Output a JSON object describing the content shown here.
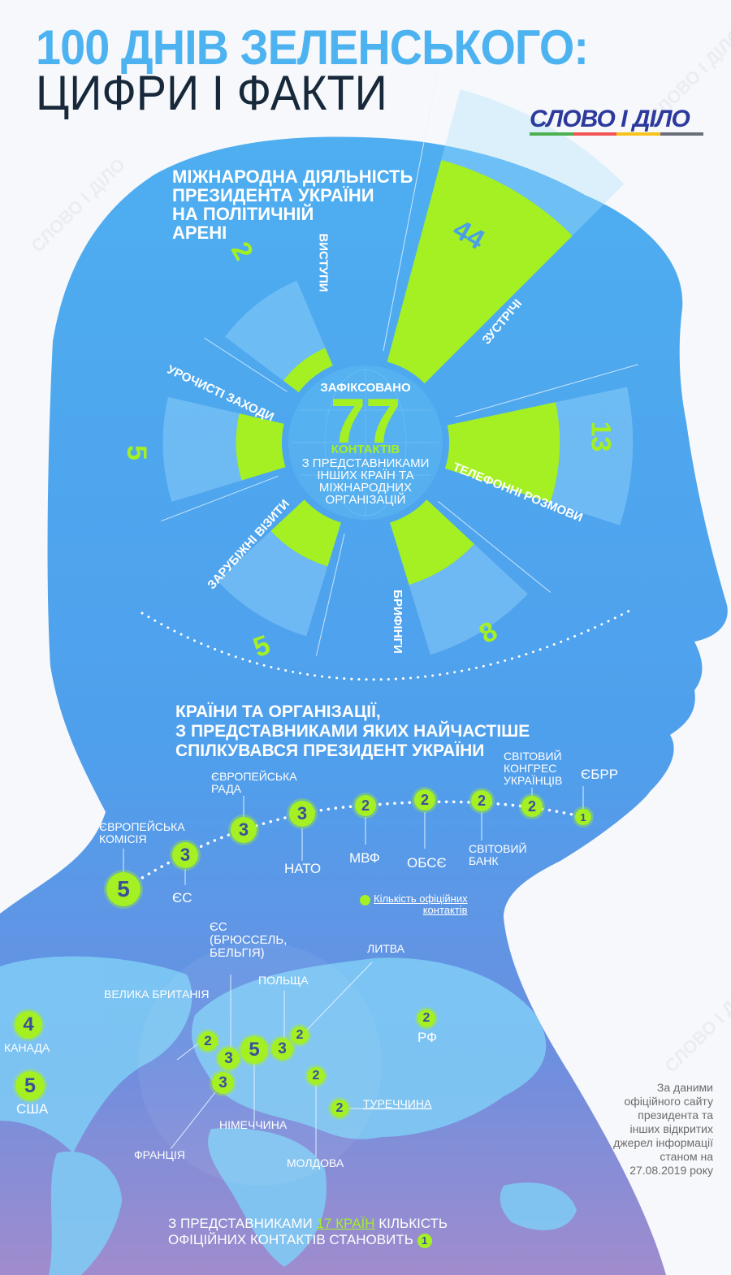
{
  "header": {
    "title_line1": "100 ДНІВ ЗЕЛЕНСЬКОГО:",
    "title_line2": "ЦИФРИ І ФАКТИ",
    "logo": "СЛОВО І ДІЛО",
    "watermark": "СЛОВО І ДІЛО"
  },
  "colors": {
    "accent_green": "#a4f023",
    "head_blue": "#4ea8ee",
    "head_purple": "#9d8fd0",
    "title_blue": "#4db3f0",
    "logo_blue": "#2b3a9c",
    "logo_stripes": [
      "#4caf50",
      "#f05454",
      "#f6c21b",
      "#6b6f7a"
    ]
  },
  "section1": {
    "title": [
      "МІЖНАРОДНА ДІЯЛЬНІСТЬ",
      "ПРЕЗИДЕНТА УКРАЇНИ",
      "НА ПОЛІТИЧНІЙ",
      "АРЕНІ"
    ],
    "center": {
      "line1": "ЗАФІКСОВАНО",
      "total": "77",
      "line2": "КОНТАКТІВ",
      "line3": [
        "З ПРЕДСТАВНИКАМИ",
        "ІНШИХ КРАЇН ТА",
        "МІЖНАРОДНИХ",
        "ОРГАНІЗАЦІЙ"
      ]
    }
  },
  "chart_data": {
    "type": "radial-bar",
    "total": 77,
    "categories": [
      "ВИСТУПИ",
      "ЗУСТРІЧІ",
      "ТЕЛЕФОННІ РОЗМОВИ",
      "БРИФІНГИ",
      "ЗАРУБІЖНІ ВІЗИТИ",
      "УРОЧИСТІ ЗАХОДИ"
    ],
    "values": [
      2,
      44,
      13,
      8,
      5,
      5
    ],
    "value_labels": [
      "2",
      "44",
      "13",
      "8",
      "5",
      "5"
    ]
  },
  "section2": {
    "title": [
      "КРАЇНИ ТА ОРГАНІЗАЦІЇ,",
      "З ПРЕДСТАВНИКАМИ ЯКИХ НАЙЧАСТІШЕ",
      "СПІЛКУВАВСЯ ПРЕЗИДЕНТ УКРАЇНИ"
    ],
    "organizations": [
      {
        "name": "ЄВРОПЕЙСЬКА КОМІСІЯ",
        "count": "5"
      },
      {
        "name": "ЄС",
        "count": "3"
      },
      {
        "name": "ЄВРОПЕЙСЬКА РАДА",
        "count": "3"
      },
      {
        "name": "НАТО",
        "count": "3"
      },
      {
        "name": "МВФ",
        "count": "2"
      },
      {
        "name": "ОБСЄ",
        "count": "2"
      },
      {
        "name": "СВІТОВИЙ БАНК",
        "count": "2"
      },
      {
        "name": "СВІТОВИЙ КОНГРЕС УКРАЇНЦІВ",
        "count": "2"
      },
      {
        "name": "ЄБРР",
        "count": "1"
      }
    ],
    "legend": [
      "Кількість офіційних",
      "контактів"
    ]
  },
  "map": {
    "countries": [
      {
        "name": "КАНАДА",
        "count": "4"
      },
      {
        "name": "США",
        "count": "5"
      },
      {
        "name": "ВЕЛИКА БРИТАНІЯ",
        "count": "2"
      },
      {
        "name": "ЄС (БРЮССЕЛЬ, БЕЛЬГІЯ)",
        "count": "3"
      },
      {
        "name": "НІМЕЧЧИНА",
        "count": "5"
      },
      {
        "name": "ПОЛЬЩА",
        "count": "3"
      },
      {
        "name": "ЛИТВА",
        "count": "2"
      },
      {
        "name": "ФРАНЦІЯ",
        "count": "3"
      },
      {
        "name": "МОЛДОВА",
        "count": "2"
      },
      {
        "name": "ТУРЕЧЧИНА",
        "count": "2"
      },
      {
        "name": "РФ",
        "count": "2"
      }
    ],
    "eu_label": [
      "ЄС",
      "(БРЮССЕЛЬ,",
      "БЕЛЬГІЯ)"
    ],
    "bottom_text": {
      "pre": "З ПРЕДСТАВНИКАМИ ",
      "highlight": "17 КРАЇН",
      "post": " КІЛЬКІСТЬ",
      "line2": "ОФІЦІЙНИХ КОНТАКТІВ СТАНОВИТЬ",
      "count": "1"
    }
  },
  "source_note": [
    "За даними",
    "офіційного сайту",
    "президента та",
    "інших відкритих",
    "джерел інформації",
    "станом на",
    "27.08.2019 року"
  ]
}
